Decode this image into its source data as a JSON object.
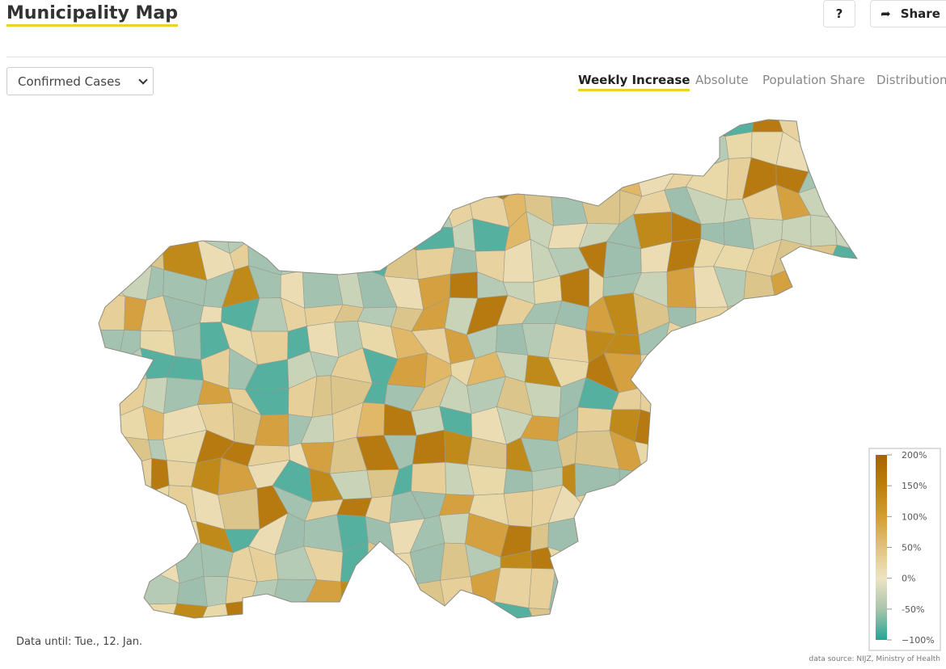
{
  "header": {
    "title": "Municipality Map",
    "help": "?",
    "share": "Share"
  },
  "controls": {
    "dropdown": "Confirmed Cases",
    "tabs": [
      "Weekly Increase",
      "Absolute",
      "Population Share",
      "Distribution"
    ],
    "active_tab": 0
  },
  "map": {
    "legend": {
      "ticks": [
        {
          "value": 200,
          "label": "200%"
        },
        {
          "value": 150,
          "label": "150%"
        },
        {
          "value": 100,
          "label": "100%"
        },
        {
          "value": 50,
          "label": "50%"
        },
        {
          "value": 0,
          "label": "0%"
        },
        {
          "value": -50,
          "label": "-50%"
        },
        {
          "value": -100,
          "label": "−100%"
        }
      ],
      "colors": [
        "#a86200",
        "#bf7e0c",
        "#d39e33",
        "#e2c27e",
        "#ede4c4",
        "#a8c5ac",
        "#24a596"
      ]
    },
    "note": "Data until: Tue., 12. Jan.",
    "source": "data source: NIJZ, Ministry of Health"
  }
}
